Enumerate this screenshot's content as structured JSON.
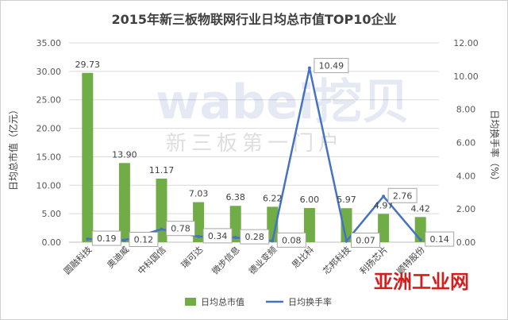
{
  "chart_data": {
    "type": "bar+line",
    "title": "2015年新三板物联网行业日均总市值TOP10企业",
    "categories": [
      "圆融科技",
      "奥迪威",
      "中科国信",
      "瑞可达",
      "微步信息",
      "德业变频",
      "思比科",
      "芯邦科技",
      "利扬芯片",
      "顺特股份"
    ],
    "series": [
      {
        "name": "日均总市值",
        "type": "bar",
        "axis": "left",
        "values": [
          29.73,
          13.9,
          11.17,
          7.03,
          6.38,
          6.22,
          6.0,
          5.97,
          4.97,
          4.42
        ],
        "labels": [
          "29.73",
          "13.90",
          "11.17",
          "7.03",
          "6.38",
          "6.22",
          "6.00",
          "5.97",
          "4.97",
          "4.42"
        ],
        "color": "#70ad47"
      },
      {
        "name": "日均换手率",
        "type": "line",
        "axis": "right",
        "values": [
          0.19,
          0.12,
          0.78,
          0.34,
          0.28,
          0.08,
          10.49,
          0.07,
          2.76,
          0.14
        ],
        "labels": [
          "0.19",
          "0.12",
          "0.78",
          "0.34",
          "0.28",
          "0.08",
          "10.49",
          "0.07",
          "2.76",
          "0.14"
        ],
        "color": "#4472c4"
      }
    ],
    "y_left": {
      "label": "日均总市值（亿元）",
      "range": [
        0,
        35
      ],
      "ticks": [
        "0.00",
        "5.00",
        "10.00",
        "15.00",
        "20.00",
        "25.00",
        "30.00",
        "35.00"
      ]
    },
    "y_right": {
      "label": "日均换手率（%）",
      "range": [
        0,
        12
      ],
      "ticks": [
        "0.00",
        "2.00",
        "4.00",
        "6.00",
        "8.00",
        "10.00",
        "12.00"
      ]
    },
    "grid": true,
    "legend": "bottom"
  },
  "watermark": {
    "brand": "wabei挖贝",
    "slogan": "新三板第一门户"
  },
  "corner_logo": "亚洲工业网"
}
